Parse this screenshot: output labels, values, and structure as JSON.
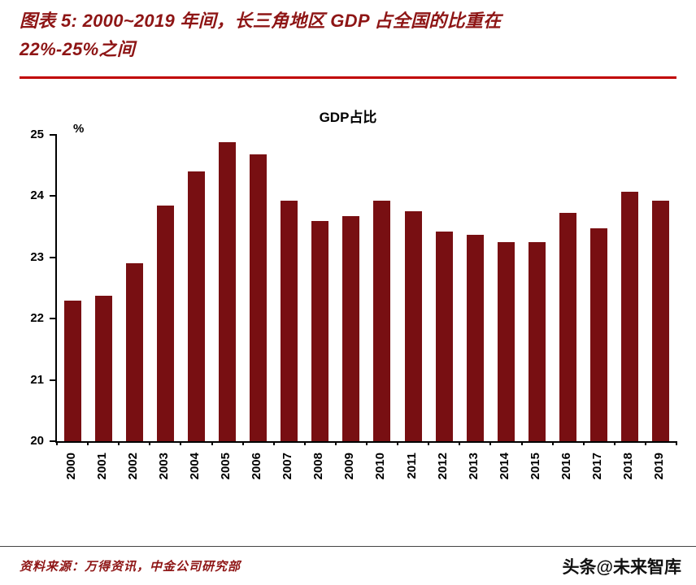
{
  "header": {
    "title_line1": "图表 5: 2000~2019 年间，长三角地区 GDP 占全国的比重在",
    "title_line2": "22%-25%之间"
  },
  "chart_data": {
    "type": "bar",
    "title": "GDP占比",
    "unit_label": "%",
    "categories": [
      "2000",
      "2001",
      "2002",
      "2003",
      "2004",
      "2005",
      "2006",
      "2007",
      "2008",
      "2009",
      "2010",
      "2011",
      "2012",
      "2013",
      "2014",
      "2015",
      "2016",
      "2017",
      "2018",
      "2019"
    ],
    "values": [
      22.3,
      22.38,
      22.9,
      23.85,
      24.4,
      24.88,
      24.68,
      23.93,
      23.6,
      23.68,
      23.93,
      23.75,
      23.42,
      23.37,
      23.25,
      23.25,
      23.73,
      23.47,
      24.07,
      23.93
    ],
    "ylim": [
      20,
      25
    ],
    "yticks": [
      20,
      21,
      22,
      23,
      24,
      25
    ],
    "xlabel": "",
    "ylabel": "%",
    "grid": false,
    "legend": "none",
    "bar_color": "#780F12"
  },
  "footer": {
    "source": "资料来源：万得资讯，中金公司研究部",
    "watermark": "头条@未来智库"
  },
  "colors": {
    "title_text": "#8E1515",
    "header_rule": "#C00000",
    "bar": "#780F12",
    "axis": "#000000"
  }
}
